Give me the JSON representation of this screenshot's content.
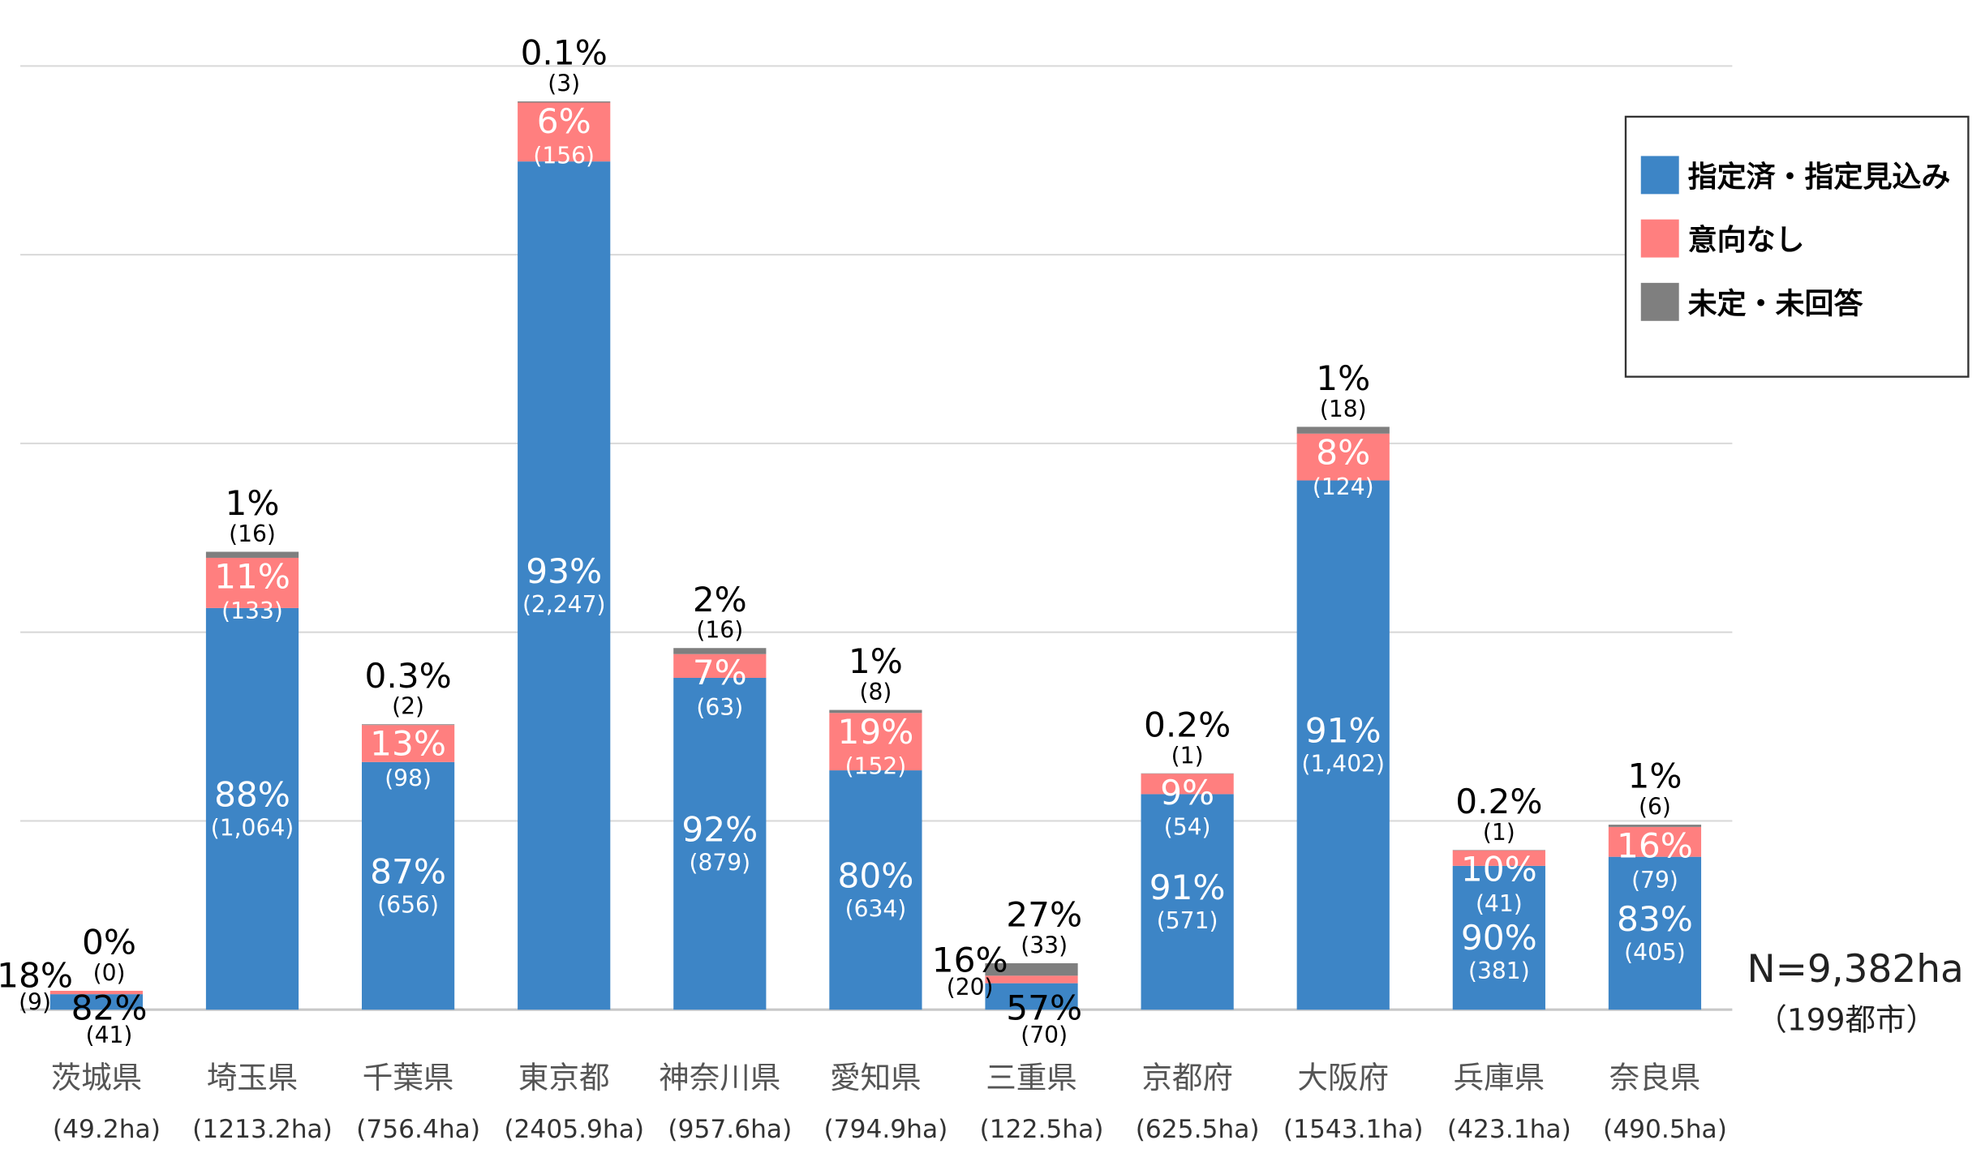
{
  "chart_data": {
    "type": "bar",
    "stacked": true,
    "title": "",
    "xlabel": "",
    "ylabel": "",
    "ylim": [
      0,
      2500
    ],
    "grid": true,
    "grid_step": 500,
    "legend_position": "top-right",
    "categories": [
      {
        "name": "茨城県",
        "area": "(49.2ha)"
      },
      {
        "name": "埼玉県",
        "area": "(1213.2ha)"
      },
      {
        "name": "千葉県",
        "area": "(756.4ha)"
      },
      {
        "name": "東京都",
        "area": "(2405.9ha)"
      },
      {
        "name": "神奈川県",
        "area": "(957.6ha)"
      },
      {
        "name": "愛知県",
        "area": "(794.9ha)"
      },
      {
        "name": "三重県",
        "area": "(122.5ha)"
      },
      {
        "name": "京都府",
        "area": "(625.5ha)"
      },
      {
        "name": "大阪府",
        "area": "(1543.1ha)"
      },
      {
        "name": "兵庫県",
        "area": "(423.1ha)"
      },
      {
        "name": "奈良県",
        "area": "(490.5ha)"
      }
    ],
    "series": [
      {
        "name": "指定済・指定見込み",
        "color": "#3d85c6",
        "values": [
          41,
          1064,
          656,
          2247,
          879,
          634,
          70,
          571,
          1402,
          381,
          405
        ],
        "pct_labels": [
          "82%",
          "88%",
          "87%",
          "93%",
          "92%",
          "80%",
          "57%",
          "91%",
          "91%",
          "90%",
          "83%"
        ],
        "count_labels": [
          "(41)",
          "(1,064)",
          "(656)",
          "(2,247)",
          "(879)",
          "(634)",
          "(70)",
          "(571)",
          "(1,402)",
          "(381)",
          "(405)"
        ]
      },
      {
        "name": "意向なし",
        "color": "#ff7f7f",
        "values": [
          9,
          133,
          98,
          156,
          63,
          152,
          20,
          54,
          124,
          41,
          79
        ],
        "pct_labels": [
          "18%",
          "11%",
          "13%",
          "6%",
          "7%",
          "19%",
          "16%",
          "9%",
          "8%",
          "10%",
          "16%"
        ],
        "count_labels": [
          "(9)",
          "(133)",
          "(98)",
          "(156)",
          "(63)",
          "(152)",
          "(20)",
          "(54)",
          "(124)",
          "(41)",
          "(79)"
        ]
      },
      {
        "name": "未定・未回答",
        "color": "#7f7f7f",
        "values": [
          0,
          16,
          2,
          3,
          16,
          8,
          33,
          1,
          18,
          1,
          6
        ],
        "pct_labels": [
          "0%",
          "1%",
          "0.3%",
          "0.1%",
          "2%",
          "1%",
          "27%",
          "0.2%",
          "1%",
          "0.2%",
          "1%"
        ],
        "count_labels": [
          "(0)",
          "(16)",
          "(2)",
          "(3)",
          "(16)",
          "(8)",
          "(33)",
          "(1)",
          "(18)",
          "(1)",
          "(6)"
        ]
      }
    ],
    "annotations": {
      "total": "N=9,382ha",
      "cities": "（199都市）"
    }
  }
}
